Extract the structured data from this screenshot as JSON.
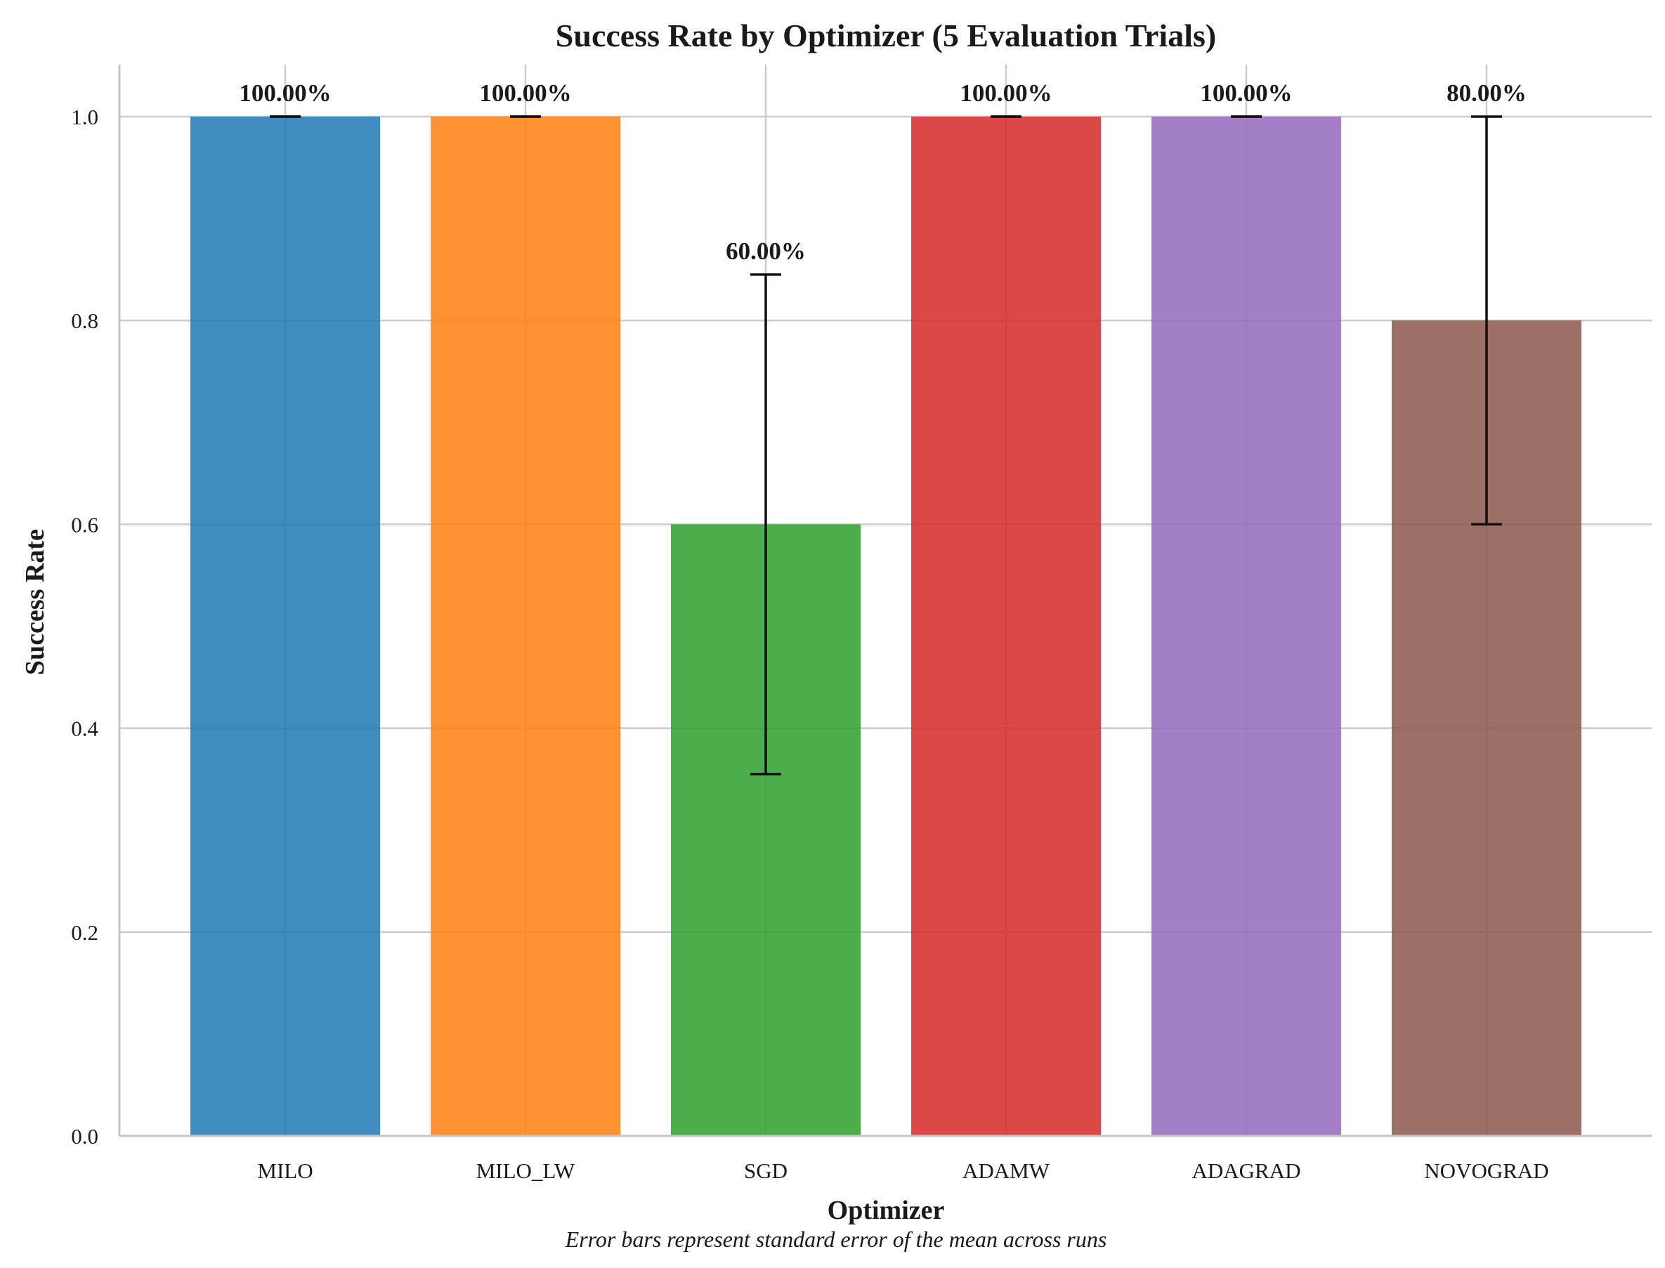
{
  "chart_data": {
    "type": "bar",
    "title": "Success Rate by Optimizer (5 Evaluation Trials)",
    "xlabel": "Optimizer",
    "ylabel": "Success Rate",
    "footnote": "Error bars represent standard error of the mean across runs",
    "categories": [
      "MILO",
      "MILO_LW",
      "SGD",
      "ADAMW",
      "ADAGRAD",
      "NOVOGRAD"
    ],
    "values": [
      1.0,
      1.0,
      0.6,
      1.0,
      1.0,
      0.8
    ],
    "error": [
      0.0,
      0.0,
      0.245,
      0.0,
      0.0,
      0.2
    ],
    "value_labels": [
      "100.00%",
      "100.00%",
      "60.00%",
      "100.00%",
      "100.00%",
      "80.00%"
    ],
    "colors": [
      "#1f77b4",
      "#ff7f0e",
      "#2ca02c",
      "#d62728",
      "#9467bd",
      "#8c564b"
    ],
    "yticks": [
      "0.0",
      "0.2",
      "0.4",
      "0.6",
      "0.8",
      "1.0"
    ],
    "ylim": [
      0,
      1.05
    ],
    "grid": true
  }
}
